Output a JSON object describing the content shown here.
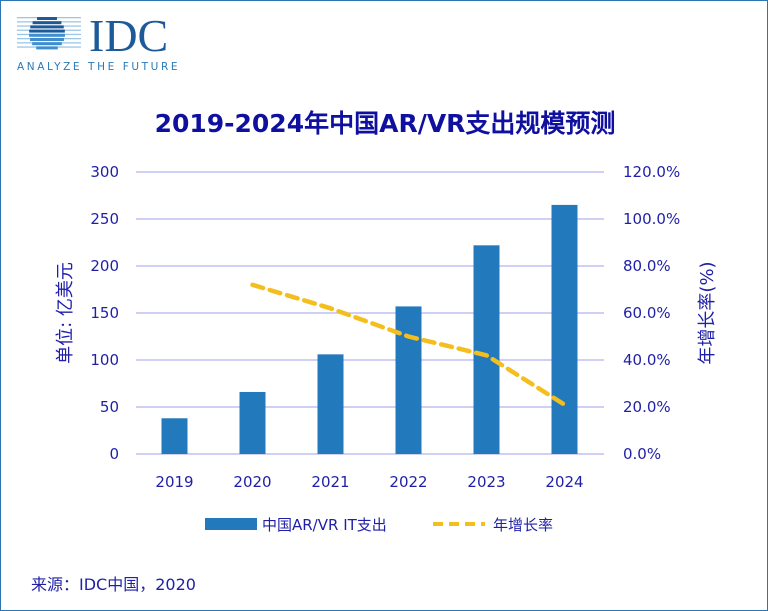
{
  "logo": {
    "name": "IDC",
    "tagline": "ANALYZE THE FUTURE"
  },
  "source": "来源：IDC中国，2020",
  "colors": {
    "bar": "#2279bc",
    "line": "#f4bf1e",
    "grid": "#b4b4f0",
    "text": "#1f1fa8"
  },
  "chart_data": {
    "type": "bar+line",
    "title": "2019-2024年中国AR/VR支出规模预测",
    "categories": [
      "2019",
      "2020",
      "2021",
      "2022",
      "2023",
      "2024"
    ],
    "ylabel_left": "单位: 亿美元",
    "ylabel_right": "年增长率(%)",
    "ylim_left": [
      0,
      300
    ],
    "yticks_left": [
      "0",
      "50",
      "100",
      "150",
      "200",
      "250",
      "300"
    ],
    "ylim_right": [
      0,
      120
    ],
    "yticks_right": [
      "0.0%",
      "20.0%",
      "40.0%",
      "60.0%",
      "80.0%",
      "100.0%",
      "120.0%"
    ],
    "grid": true,
    "legend_position": "bottom",
    "series": [
      {
        "name": "中国AR/VR IT支出",
        "type": "bar",
        "axis": "left",
        "values": [
          38,
          66,
          106,
          157,
          222,
          265
        ]
      },
      {
        "name": "年增长率",
        "type": "line",
        "style": "dashed",
        "axis": "right",
        "values": [
          null,
          72,
          62,
          50,
          42,
          21
        ]
      }
    ]
  }
}
